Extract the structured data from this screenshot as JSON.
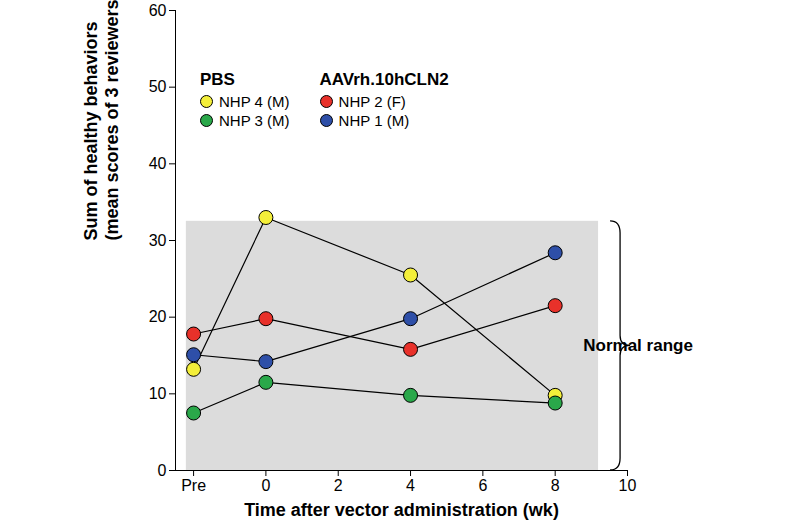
{
  "chart_data": {
    "type": "line",
    "xlabel": "Time after vector administration (wk)",
    "ylabel": "Sum of healthy behaviors\n(mean scores of 3 reviewers)",
    "x": [
      -2,
      0,
      4,
      8
    ],
    "xlim": [
      -2.5,
      10
    ],
    "xticks": [
      {
        "value": -2,
        "label": "Pre"
      },
      0,
      2,
      4,
      6,
      8,
      10
    ],
    "ylim": [
      0,
      60
    ],
    "yticks": [
      0,
      10,
      20,
      30,
      40,
      50,
      60
    ],
    "legend": "top-left",
    "series": [
      {
        "name": "NHP 4 (M)",
        "group": "PBS",
        "color": "#f4ef3a",
        "marker": "circle",
        "values": [
          13.2,
          33,
          25.5,
          9.8
        ]
      },
      {
        "name": "NHP 3 (M)",
        "group": "PBS",
        "color": "#2aa84a",
        "marker": "circle",
        "values": [
          7.5,
          11.5,
          9.8,
          8.8
        ]
      },
      {
        "name": "NHP 2 (F)",
        "group": "AAVrh.10hCLN2",
        "color": "#e8312a",
        "marker": "circle",
        "values": [
          17.8,
          19.8,
          15.8,
          21.5
        ]
      },
      {
        "name": "NHP 1 (M)",
        "group": "AAVrh.10hCLN2",
        "color": "#2e4fa8",
        "marker": "circle",
        "values": [
          15.1,
          14.2,
          19.8,
          28.4
        ]
      }
    ],
    "normal_range": {
      "label": "Normal range",
      "x": [
        -2.2,
        9.2
      ],
      "y": [
        0,
        32.5
      ]
    }
  }
}
